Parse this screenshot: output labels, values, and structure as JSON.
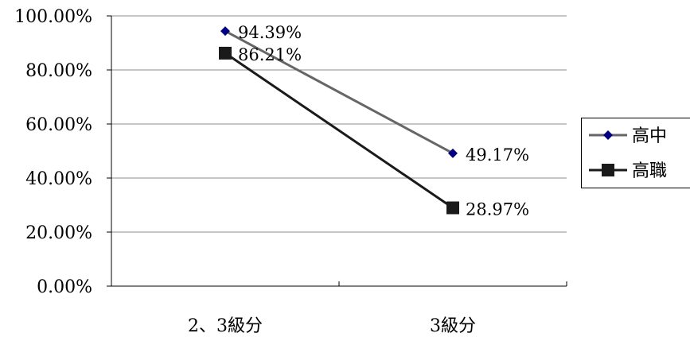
{
  "chart_data": {
    "type": "line",
    "categories": [
      "2、3級分",
      "3級分"
    ],
    "y_tick_labels": [
      "0.00%",
      "20.00%",
      "40.00%",
      "60.00%",
      "80.00%",
      "100.00%"
    ],
    "ylim": [
      0,
      100
    ],
    "grid": true,
    "legend_position": "right",
    "series": [
      {
        "name": "高中",
        "values": [
          94.39,
          49.17
        ],
        "labels": [
          "94.39%",
          "49.17%"
        ],
        "color": "#666666",
        "marker": "diamond",
        "marker_color": "#000080"
      },
      {
        "name": "高職",
        "values": [
          86.21,
          28.97
        ],
        "labels": [
          "86.21%",
          "28.97%"
        ],
        "color": "#1a1a1a",
        "marker": "square",
        "marker_color": "#1a1a1a"
      }
    ]
  }
}
